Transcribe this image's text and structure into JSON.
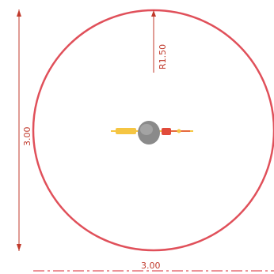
{
  "drawing": {
    "radius_dimension": "R1.50",
    "height_dimension": "3.00",
    "width_dimension": "3.00",
    "colors": {
      "circle": "#e0505a",
      "dimension": "#c0392b",
      "part_body": "#8a8a8a",
      "part_highlight": "#f5c542",
      "part_accent": "#e14b3b"
    }
  }
}
